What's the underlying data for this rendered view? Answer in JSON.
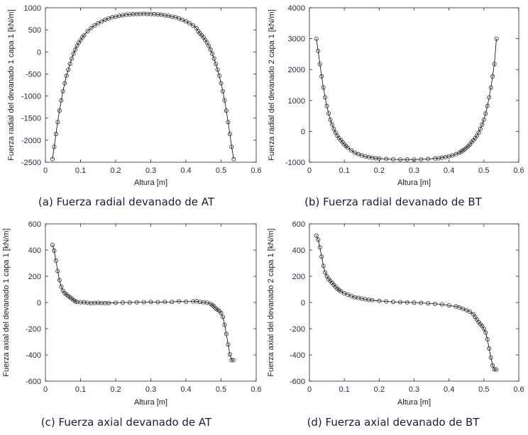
{
  "chart_data": [
    {
      "type": "line",
      "caption": "(a)  Fuerza radial devanado de AT",
      "xlabel": "Altura [m]",
      "ylabel": "Fuerza radial del devanado 1 capa 1 [kN/m]",
      "xlim": [
        0,
        0.6
      ],
      "ylim": [
        -2500,
        1000
      ],
      "xticks": [
        "0",
        "0.1",
        "0.2",
        "0.3",
        "0.4",
        "0.5",
        "0.6"
      ],
      "yticks": [
        "-2500",
        "-2000",
        "-1500",
        "-1000",
        "-500",
        "0",
        "500",
        "1000"
      ],
      "grid": false,
      "marker": "circle",
      "color": "#000000",
      "x": [
        0.02,
        0.025,
        0.03,
        0.035,
        0.04,
        0.045,
        0.05,
        0.055,
        0.06,
        0.065,
        0.07,
        0.075,
        0.08,
        0.085,
        0.09,
        0.095,
        0.1,
        0.105,
        0.11,
        0.12,
        0.13,
        0.14,
        0.15,
        0.16,
        0.17,
        0.18,
        0.19,
        0.2,
        0.21,
        0.22,
        0.23,
        0.24,
        0.25,
        0.26,
        0.27,
        0.28,
        0.29,
        0.3,
        0.31,
        0.32,
        0.33,
        0.34,
        0.35,
        0.36,
        0.37,
        0.38,
        0.39,
        0.4,
        0.41,
        0.42,
        0.43,
        0.435,
        0.44,
        0.445,
        0.45,
        0.455,
        0.46,
        0.465,
        0.47,
        0.475,
        0.48,
        0.485,
        0.49,
        0.495,
        0.5,
        0.505,
        0.51,
        0.515,
        0.52,
        0.525,
        0.53,
        0.536
      ],
      "y": [
        -2430,
        -2150,
        -1860,
        -1590,
        -1330,
        -1100,
        -890,
        -710,
        -540,
        -400,
        -270,
        -150,
        -40,
        50,
        140,
        210,
        270,
        330,
        380,
        470,
        540,
        600,
        650,
        690,
        730,
        760,
        785,
        800,
        820,
        830,
        845,
        850,
        855,
        860,
        862,
        865,
        862,
        860,
        855,
        850,
        845,
        830,
        820,
        800,
        785,
        760,
        730,
        690,
        650,
        600,
        540,
        470,
        420,
        380,
        330,
        270,
        210,
        140,
        50,
        -40,
        -150,
        -270,
        -400,
        -540,
        -710,
        -890,
        -1100,
        -1330,
        -1590,
        -1860,
        -2150,
        -2430
      ]
    },
    {
      "type": "line",
      "caption": "(b)  Fuerza radial devanado de BT",
      "xlabel": "Altura [m]",
      "ylabel": "Fuerza radial del devanado 2 capa 1 [kN/m]",
      "xlim": [
        0,
        0.6
      ],
      "ylim": [
        -1000,
        4000
      ],
      "xticks": [
        "0",
        "0.1",
        "0.2",
        "0.3",
        "0.4",
        "0.5",
        "0.6"
      ],
      "yticks": [
        "-1000",
        "0",
        "1000",
        "2000",
        "3000",
        "4000"
      ],
      "grid": false,
      "marker": "circle",
      "color": "#000000",
      "x": [
        0.02,
        0.025,
        0.03,
        0.035,
        0.04,
        0.045,
        0.05,
        0.055,
        0.06,
        0.065,
        0.07,
        0.075,
        0.08,
        0.085,
        0.09,
        0.095,
        0.1,
        0.105,
        0.11,
        0.12,
        0.13,
        0.14,
        0.15,
        0.16,
        0.17,
        0.18,
        0.19,
        0.2,
        0.22,
        0.24,
        0.26,
        0.28,
        0.3,
        0.32,
        0.34,
        0.36,
        0.37,
        0.38,
        0.39,
        0.4,
        0.41,
        0.42,
        0.43,
        0.435,
        0.44,
        0.445,
        0.45,
        0.455,
        0.46,
        0.465,
        0.47,
        0.475,
        0.48,
        0.485,
        0.49,
        0.495,
        0.5,
        0.505,
        0.51,
        0.515,
        0.52,
        0.525,
        0.53,
        0.536
      ],
      "y": [
        3000,
        2600,
        2180,
        1780,
        1420,
        1100,
        820,
        580,
        380,
        220,
        80,
        -40,
        -140,
        -220,
        -290,
        -350,
        -420,
        -480,
        -530,
        -620,
        -690,
        -740,
        -780,
        -810,
        -835,
        -855,
        -870,
        -880,
        -895,
        -905,
        -910,
        -912,
        -910,
        -905,
        -895,
        -880,
        -870,
        -855,
        -835,
        -810,
        -780,
        -740,
        -690,
        -660,
        -620,
        -580,
        -530,
        -480,
        -420,
        -350,
        -290,
        -220,
        -140,
        -40,
        80,
        220,
        380,
        580,
        820,
        1100,
        1420,
        1780,
        2180,
        3000
      ]
    },
    {
      "type": "line",
      "caption": "(c)  Fuerza axial devanado de AT",
      "xlabel": "Altura [m]",
      "ylabel": "Fuerza axial del devanado 1 capa 1 [kN/m]",
      "xlim": [
        0,
        0.6
      ],
      "ylim": [
        -600,
        600
      ],
      "xticks": [
        "0",
        "0.1",
        "0.2",
        "0.3",
        "0.4",
        "0.5",
        "0.6"
      ],
      "yticks": [
        "-600",
        "-400",
        "-200",
        "0",
        "200",
        "400",
        "600"
      ],
      "grid": false,
      "marker": "circle",
      "color": "#000000",
      "x": [
        0.02,
        0.025,
        0.03,
        0.035,
        0.04,
        0.045,
        0.05,
        0.055,
        0.06,
        0.065,
        0.07,
        0.075,
        0.08,
        0.085,
        0.09,
        0.1,
        0.11,
        0.12,
        0.13,
        0.14,
        0.15,
        0.16,
        0.17,
        0.18,
        0.2,
        0.22,
        0.24,
        0.26,
        0.28,
        0.3,
        0.32,
        0.34,
        0.36,
        0.38,
        0.4,
        0.42,
        0.43,
        0.44,
        0.45,
        0.46,
        0.47,
        0.475,
        0.48,
        0.485,
        0.49,
        0.495,
        0.5,
        0.505,
        0.51,
        0.515,
        0.52,
        0.525,
        0.53,
        0.535
      ],
      "y": [
        440,
        395,
        320,
        240,
        170,
        120,
        90,
        70,
        60,
        50,
        40,
        30,
        18,
        8,
        5,
        3,
        2,
        -2,
        -5,
        -3,
        -2,
        -4,
        -5,
        -4,
        -2,
        0,
        0,
        2,
        3,
        4,
        3,
        4,
        5,
        8,
        6,
        8,
        10,
        5,
        2,
        0,
        -10,
        -20,
        -30,
        -45,
        -55,
        -65,
        -80,
        -110,
        -170,
        -240,
        -320,
        -395,
        -440,
        -440
      ]
    },
    {
      "type": "line",
      "caption": "(d)  Fuerza axial devanado de BT",
      "xlabel": "Altura [m]",
      "ylabel": "Fuerza axial del devanado 2 capa 1 [kN/m]",
      "xlim": [
        0,
        0.6
      ],
      "ylim": [
        -600,
        600
      ],
      "xticks": [
        "0",
        "0.1",
        "0.2",
        "0.3",
        "0.4",
        "0.5",
        "0.6"
      ],
      "yticks": [
        "-600",
        "-400",
        "-200",
        "0",
        "200",
        "400",
        "600"
      ],
      "grid": false,
      "marker": "circle",
      "color": "#000000",
      "x": [
        0.02,
        0.025,
        0.03,
        0.035,
        0.04,
        0.045,
        0.05,
        0.055,
        0.06,
        0.065,
        0.07,
        0.075,
        0.08,
        0.085,
        0.09,
        0.1,
        0.11,
        0.12,
        0.13,
        0.14,
        0.15,
        0.16,
        0.17,
        0.18,
        0.2,
        0.22,
        0.24,
        0.26,
        0.28,
        0.3,
        0.32,
        0.34,
        0.36,
        0.38,
        0.4,
        0.42,
        0.43,
        0.44,
        0.45,
        0.46,
        0.47,
        0.475,
        0.48,
        0.485,
        0.49,
        0.495,
        0.5,
        0.505,
        0.51,
        0.515,
        0.52,
        0.525,
        0.53,
        0.535
      ],
      "y": [
        510,
        480,
        420,
        350,
        280,
        230,
        200,
        180,
        165,
        150,
        135,
        120,
        105,
        95,
        85,
        70,
        60,
        50,
        40,
        35,
        30,
        25,
        20,
        18,
        12,
        8,
        5,
        3,
        1,
        0,
        -3,
        -6,
        -10,
        -14,
        -22,
        -30,
        -38,
        -48,
        -58,
        -70,
        -90,
        -110,
        -130,
        -150,
        -165,
        -180,
        -200,
        -230,
        -280,
        -350,
        -420,
        -480,
        -510,
        -510
      ]
    }
  ]
}
